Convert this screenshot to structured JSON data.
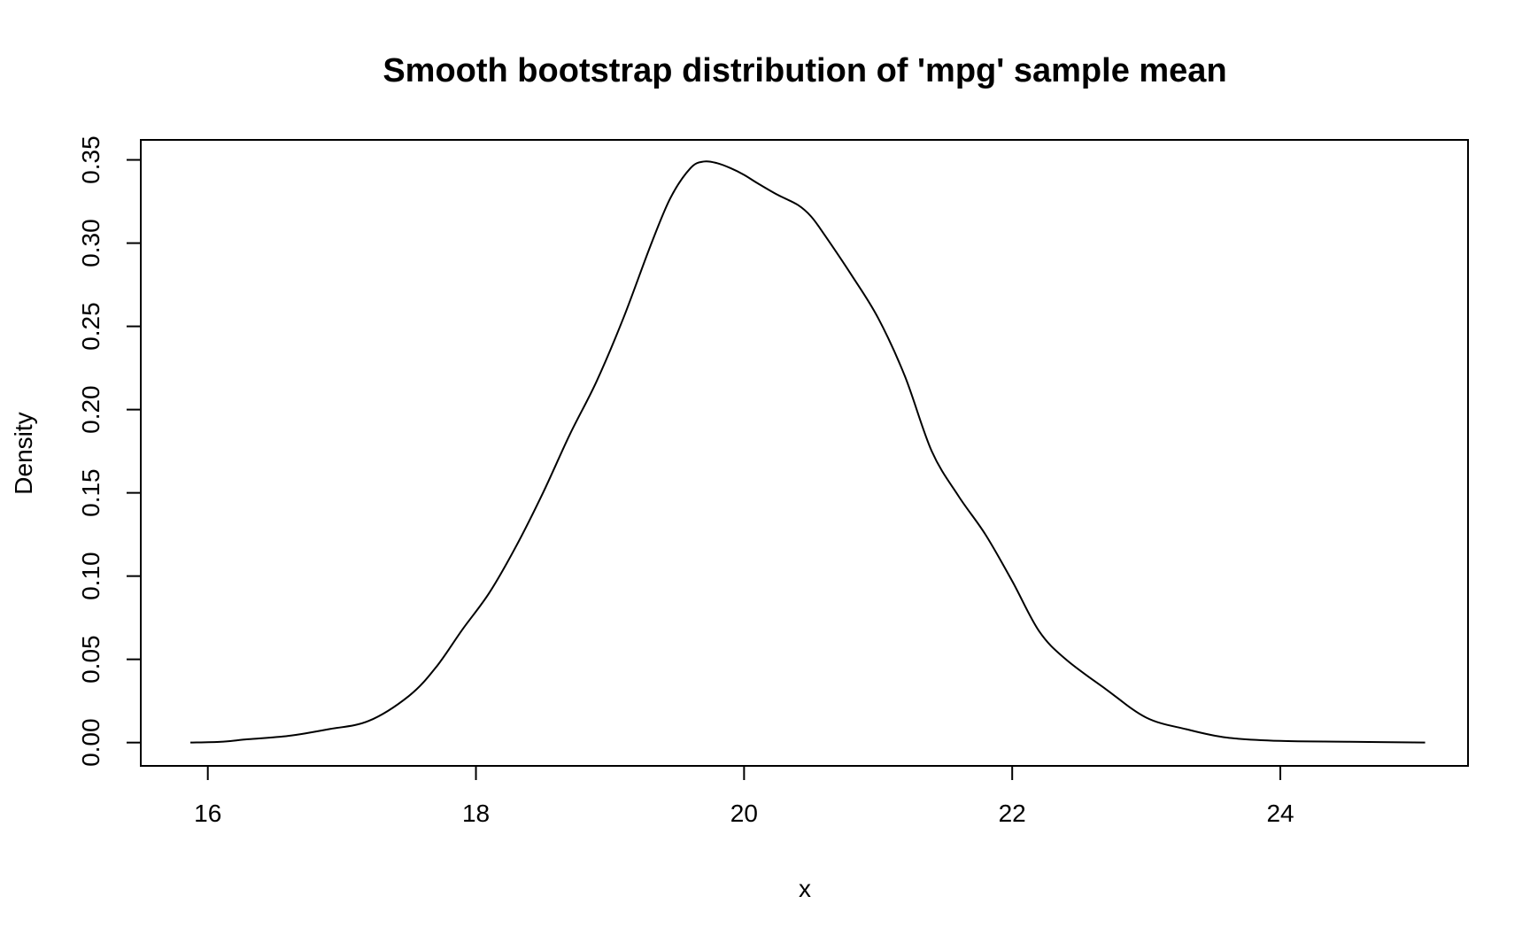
{
  "chart_data": {
    "type": "line",
    "title": "Smooth bootstrap distribution of 'mpg' sample mean",
    "xlabel": "x",
    "ylabel": "Density",
    "xlim": [
      15.5,
      25.4
    ],
    "ylim": [
      -0.014,
      0.362
    ],
    "x_ticks": [
      16,
      18,
      20,
      22,
      24
    ],
    "x_tick_labels": [
      "16",
      "18",
      "20",
      "22",
      "24"
    ],
    "y_ticks": [
      0.0,
      0.05,
      0.1,
      0.15,
      0.2,
      0.25,
      0.3,
      0.35
    ],
    "y_tick_labels": [
      "0.00",
      "0.05",
      "0.10",
      "0.15",
      "0.20",
      "0.25",
      "0.30",
      "0.35"
    ],
    "grid": false,
    "legend": "none",
    "line_color": "#000000",
    "series": [
      {
        "x": [
          15.87,
          16.1,
          16.3,
          16.6,
          16.9,
          17.2,
          17.5,
          17.7,
          17.9,
          18.1,
          18.3,
          18.5,
          18.7,
          18.9,
          19.1,
          19.3,
          19.45,
          19.6,
          19.7,
          19.8,
          19.9,
          20.0,
          20.1,
          20.25,
          20.4,
          20.5,
          20.6,
          20.8,
          21.0,
          21.2,
          21.4,
          21.6,
          21.8,
          22.0,
          22.2,
          22.4,
          22.7,
          23.0,
          23.3,
          23.6,
          24.0,
          24.5,
          25.08
        ],
        "y": [
          0.0,
          0.0005,
          0.002,
          0.004,
          0.008,
          0.013,
          0.028,
          0.045,
          0.068,
          0.09,
          0.118,
          0.15,
          0.185,
          0.217,
          0.255,
          0.298,
          0.327,
          0.345,
          0.349,
          0.348,
          0.345,
          0.341,
          0.336,
          0.329,
          0.323,
          0.316,
          0.305,
          0.281,
          0.255,
          0.22,
          0.175,
          0.148,
          0.125,
          0.097,
          0.067,
          0.05,
          0.032,
          0.015,
          0.008,
          0.003,
          0.001,
          0.0005,
          0.0
        ]
      }
    ]
  }
}
